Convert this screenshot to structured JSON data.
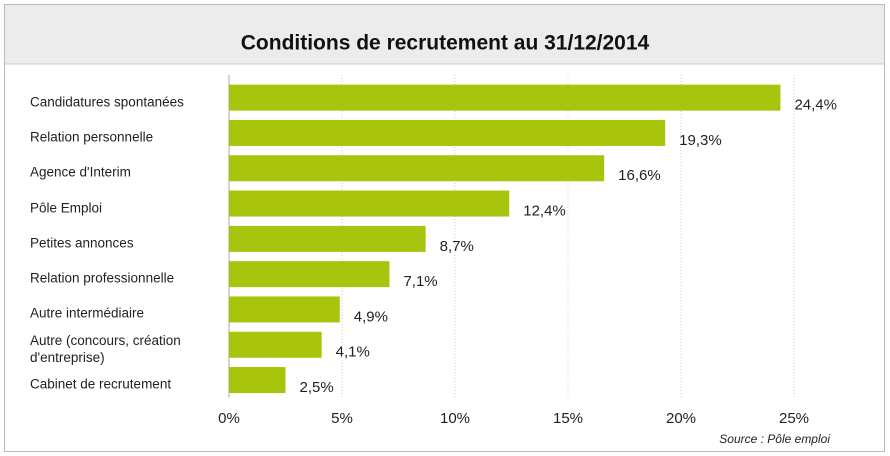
{
  "chart_data": {
    "type": "bar",
    "orientation": "horizontal",
    "title": "Conditions de recrutement au 31/12/2014",
    "categories": [
      "Candidatures spontanées",
      "Relation personnelle",
      "Agence d'Interim",
      "Pôle Emploi",
      "Petites annonces",
      "Relation professionnelle",
      "Autre intermédiaire",
      "Autre (concours, création d'entreprise)",
      "Cabinet de recrutement"
    ],
    "values": [
      24.4,
      19.3,
      16.6,
      12.4,
      8.7,
      7.1,
      4.9,
      4.1,
      2.5
    ],
    "value_labels": [
      "24,4%",
      "19,3%",
      "16,6%",
      "12,4%",
      "8,7%",
      "7,1%",
      "4,9%",
      "4,1%",
      "2,5%"
    ],
    "color": "#a8c40c",
    "xlim": [
      0,
      25
    ],
    "xticks": [
      {
        "value": 0,
        "label": "0%"
      },
      {
        "value": 5,
        "label": "5%"
      },
      {
        "value": 10,
        "label": "10%"
      },
      {
        "value": 15,
        "label": "15%"
      },
      {
        "value": 20,
        "label": "20%"
      },
      {
        "value": 25,
        "label": "25%"
      }
    ],
    "grid": true,
    "source": "Source : Pôle emploi"
  }
}
